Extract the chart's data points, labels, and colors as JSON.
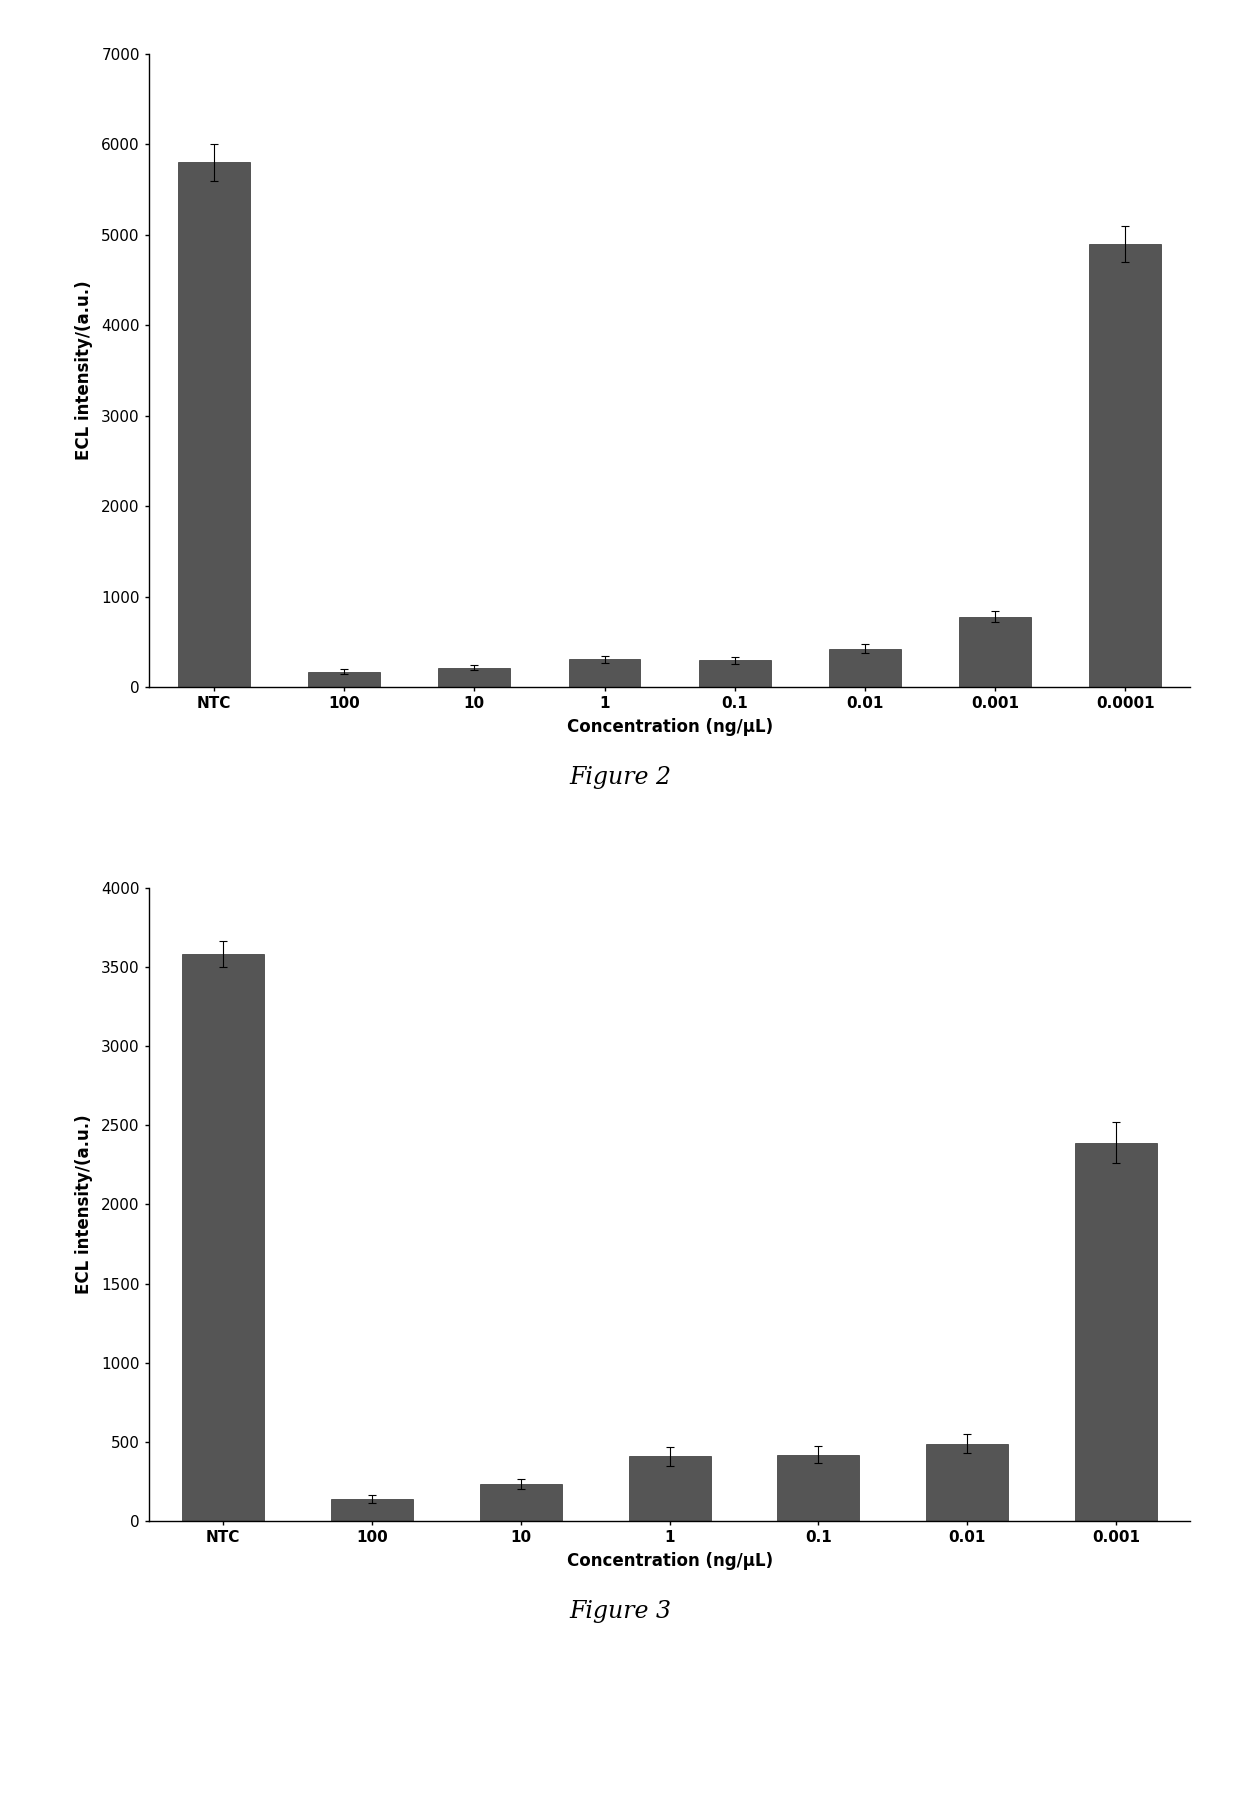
{
  "fig2": {
    "categories": [
      "NTC",
      "100",
      "10",
      "1",
      "0.1",
      "0.01",
      "0.001",
      "0.0001"
    ],
    "values": [
      5800,
      175,
      220,
      310,
      300,
      430,
      780,
      4900
    ],
    "errors": [
      200,
      30,
      30,
      40,
      40,
      50,
      60,
      200
    ],
    "ylabel": "ECL intensity/(a.u.)",
    "xlabel": "Concentration (ng/μL)",
    "ylim": [
      0,
      7000
    ],
    "yticks": [
      0,
      1000,
      2000,
      3000,
      4000,
      5000,
      6000,
      7000
    ],
    "caption": "Figure 2",
    "bar_color": "#555555"
  },
  "fig3": {
    "categories": [
      "NTC",
      "100",
      "10",
      "1",
      "0.1",
      "0.01",
      "0.001"
    ],
    "values": [
      3580,
      140,
      235,
      410,
      420,
      490,
      2390
    ],
    "errors": [
      80,
      25,
      30,
      60,
      55,
      60,
      130
    ],
    "ylabel": "ECL intensity/(a.u.)",
    "xlabel": "Concentration (ng/μL)",
    "ylim": [
      0,
      4000
    ],
    "yticks": [
      0,
      500,
      1000,
      1500,
      2000,
      2500,
      3000,
      3500,
      4000
    ],
    "caption": "Figure 3",
    "bar_color": "#555555"
  },
  "background_color": "#ffffff",
  "fig_width": 12.4,
  "fig_height": 17.93,
  "dpi": 100
}
